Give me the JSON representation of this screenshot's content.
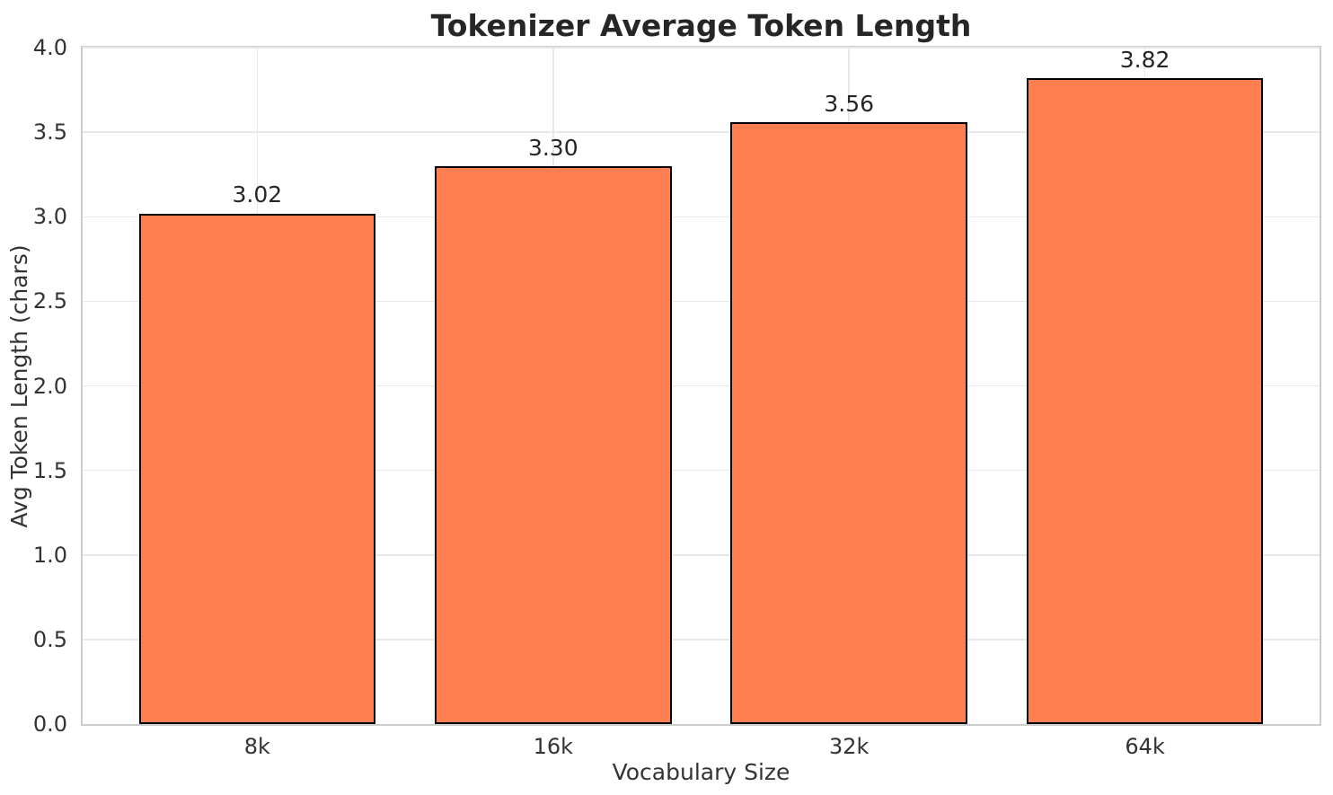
{
  "chart_data": {
    "type": "bar",
    "title": "Tokenizer Average Token Length",
    "xlabel": "Vocabulary Size",
    "ylabel": "Avg Token Length (chars)",
    "categories": [
      "8k",
      "16k",
      "32k",
      "64k"
    ],
    "values": [
      3.02,
      3.3,
      3.56,
      3.82
    ],
    "value_labels": [
      "3.02",
      "3.30",
      "3.56",
      "3.82"
    ],
    "ylim": [
      0.0,
      4.0
    ],
    "ytick_values": [
      0.0,
      0.5,
      1.0,
      1.5,
      2.0,
      2.5,
      3.0,
      3.5,
      4.0
    ],
    "ytick_labels": [
      "0.0",
      "0.5",
      "1.0",
      "1.5",
      "2.0",
      "2.5",
      "3.0",
      "3.5",
      "4.0"
    ],
    "grid": true,
    "legend": "none",
    "bar_color": "#FF7F50",
    "bar_edge_color": "#000000",
    "grid_color": "#e8e8e8",
    "spine_color": "#cccccc",
    "text_color": "#333333",
    "title_color": "#262626"
  }
}
